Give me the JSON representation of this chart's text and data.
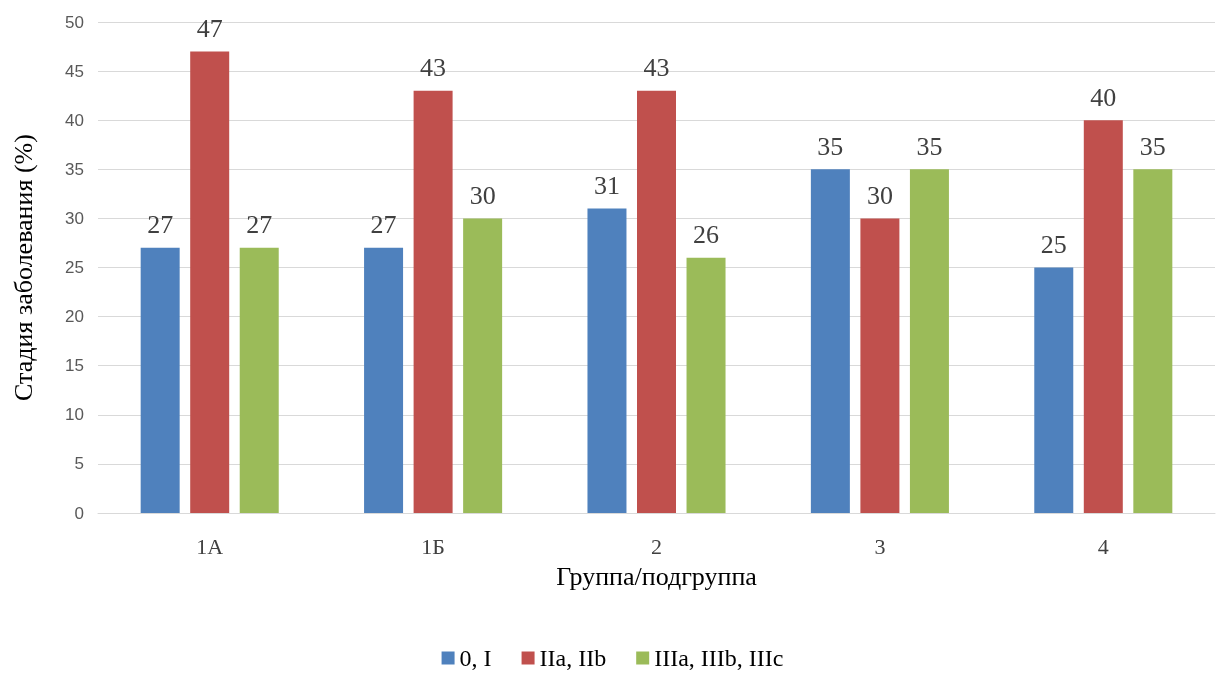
{
  "chart_data": {
    "type": "bar",
    "xlabel": "Группа/подгруппа",
    "ylabel": "Стадия заболевания (%)",
    "categories": [
      "1А",
      "1Б",
      "2",
      "3",
      "4"
    ],
    "series": [
      {
        "name": "0, I",
        "color": "#4f81bd",
        "values": [
          27,
          27,
          31,
          35,
          25
        ]
      },
      {
        "name": "IIa, IIb",
        "color": "#c0504d",
        "values": [
          47,
          43,
          43,
          30,
          40
        ]
      },
      {
        "name": "IIIa, IIIb, IIIc",
        "color": "#9bbb59",
        "values": [
          27,
          30,
          26,
          35,
          35
        ]
      }
    ],
    "ylim": [
      0,
      50
    ],
    "yticks": [
      0,
      5,
      10,
      15,
      20,
      25,
      30,
      35,
      40,
      45,
      50
    ],
    "grid": "y",
    "legend": "bottom",
    "data_labels": true
  }
}
